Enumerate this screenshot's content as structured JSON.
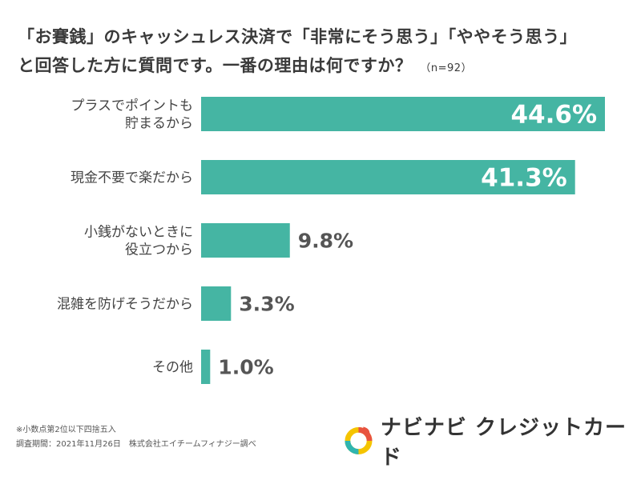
{
  "title": {
    "line1": "「お賽銭」のキャッシュレス決済で「非常にそう思う」「ややそう思う」",
    "line2": "と回答した方に質問です。一番の理由は何ですか？",
    "sample": "（n=92）"
  },
  "chart_data": {
    "type": "bar",
    "orientation": "horizontal",
    "categories": [
      [
        "プラスでポイントも",
        "貯まるから"
      ],
      [
        "現金不要で楽だから"
      ],
      [
        "小銭がないときに",
        "役立つから"
      ],
      [
        "混雑を防げそうだから"
      ],
      [
        "その他"
      ]
    ],
    "values": [
      44.6,
      41.3,
      9.8,
      3.3,
      1.0
    ],
    "value_labels": [
      "44.6%",
      "41.3%",
      "9.8%",
      "3.3%",
      "1.0%"
    ],
    "unit": "%",
    "xlim": [
      0,
      45
    ],
    "bar_color": "#45b5a3",
    "grid": false
  },
  "footnotes": {
    "note": "※小数点第2位以下四捨五入",
    "survey": "調査期間：2021年11月26日　株式会社エイチームフィナジー調べ"
  },
  "brand": {
    "name": "ナビナビ クレジットカード",
    "logo_colors": [
      "#f5c400",
      "#e8533f",
      "#2fb5b0"
    ]
  }
}
